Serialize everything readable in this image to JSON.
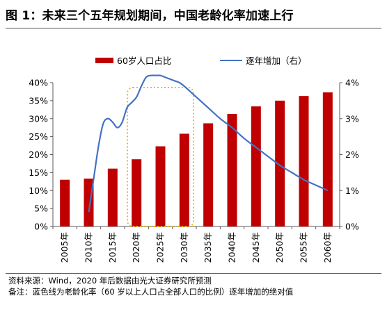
{
  "figure": {
    "title": "图 1：未来三个五年规划期间，中国老龄化率加速上行",
    "source": "资料来源：Wind，2020 年后数据由光大证券研究所预测",
    "note": "备注：蓝色线为老龄化率（60 岁以上人口占全部人口的比例）逐年增加的绝对值"
  },
  "colors": {
    "bar": "#c00000",
    "line": "#4472c4",
    "highlight_box": "#f2b800"
  },
  "chart_data": {
    "type": "bar",
    "categories": [
      "2005年",
      "2010年",
      "2015年",
      "2020年",
      "2025年",
      "2030年",
      "2035年",
      "2040年",
      "2045年",
      "2050年",
      "2055年",
      "2060年"
    ],
    "series": [
      {
        "name": "60岁人口占比",
        "type": "bar",
        "axis": "left",
        "values": [
          13.0,
          13.3,
          16.1,
          18.7,
          22.3,
          25.8,
          28.7,
          31.3,
          33.4,
          35.0,
          36.3,
          37.3
        ]
      },
      {
        "name": "逐年增加（右）",
        "type": "line",
        "axis": "right",
        "x": [
          2010.0,
          2011.0,
          2012.0,
          2013.0,
          2014.0,
          2015.0,
          2016.0,
          2017.0,
          2018.0,
          2019.0,
          2020.0,
          2021.0,
          2022.0,
          2023.0,
          2024.0,
          2025.0,
          2026.0,
          2027.0,
          2028.0,
          2029.0,
          2030.0,
          2032.5,
          2035.0,
          2037.5,
          2040.0,
          2042.5,
          2045.0,
          2047.5,
          2050.0,
          2052.5,
          2055.0,
          2057.5,
          2060.0
        ],
        "values": [
          0.4,
          1.3,
          2.2,
          2.85,
          3.0,
          2.9,
          2.75,
          2.9,
          3.3,
          3.45,
          3.6,
          3.9,
          4.15,
          4.2,
          4.2,
          4.2,
          4.15,
          4.1,
          4.05,
          4.0,
          3.9,
          3.6,
          3.3,
          3.0,
          2.75,
          2.45,
          2.2,
          1.95,
          1.7,
          1.5,
          1.3,
          1.15,
          1.0
        ]
      }
    ],
    "y_left": {
      "min": 0,
      "max": 40,
      "ticks": [
        "0%",
        "5%",
        "10%",
        "15%",
        "20%",
        "25%",
        "30%",
        "35%",
        "40%"
      ]
    },
    "y_right": {
      "min": 0,
      "max": 4,
      "ticks": [
        "0%",
        "1%",
        "2%",
        "3%",
        "4%"
      ]
    },
    "legend": [
      "60岁人口占比",
      "逐年增加（右）"
    ],
    "legend_position": "top-center",
    "highlight": "2020年–2030年",
    "grid": false
  }
}
